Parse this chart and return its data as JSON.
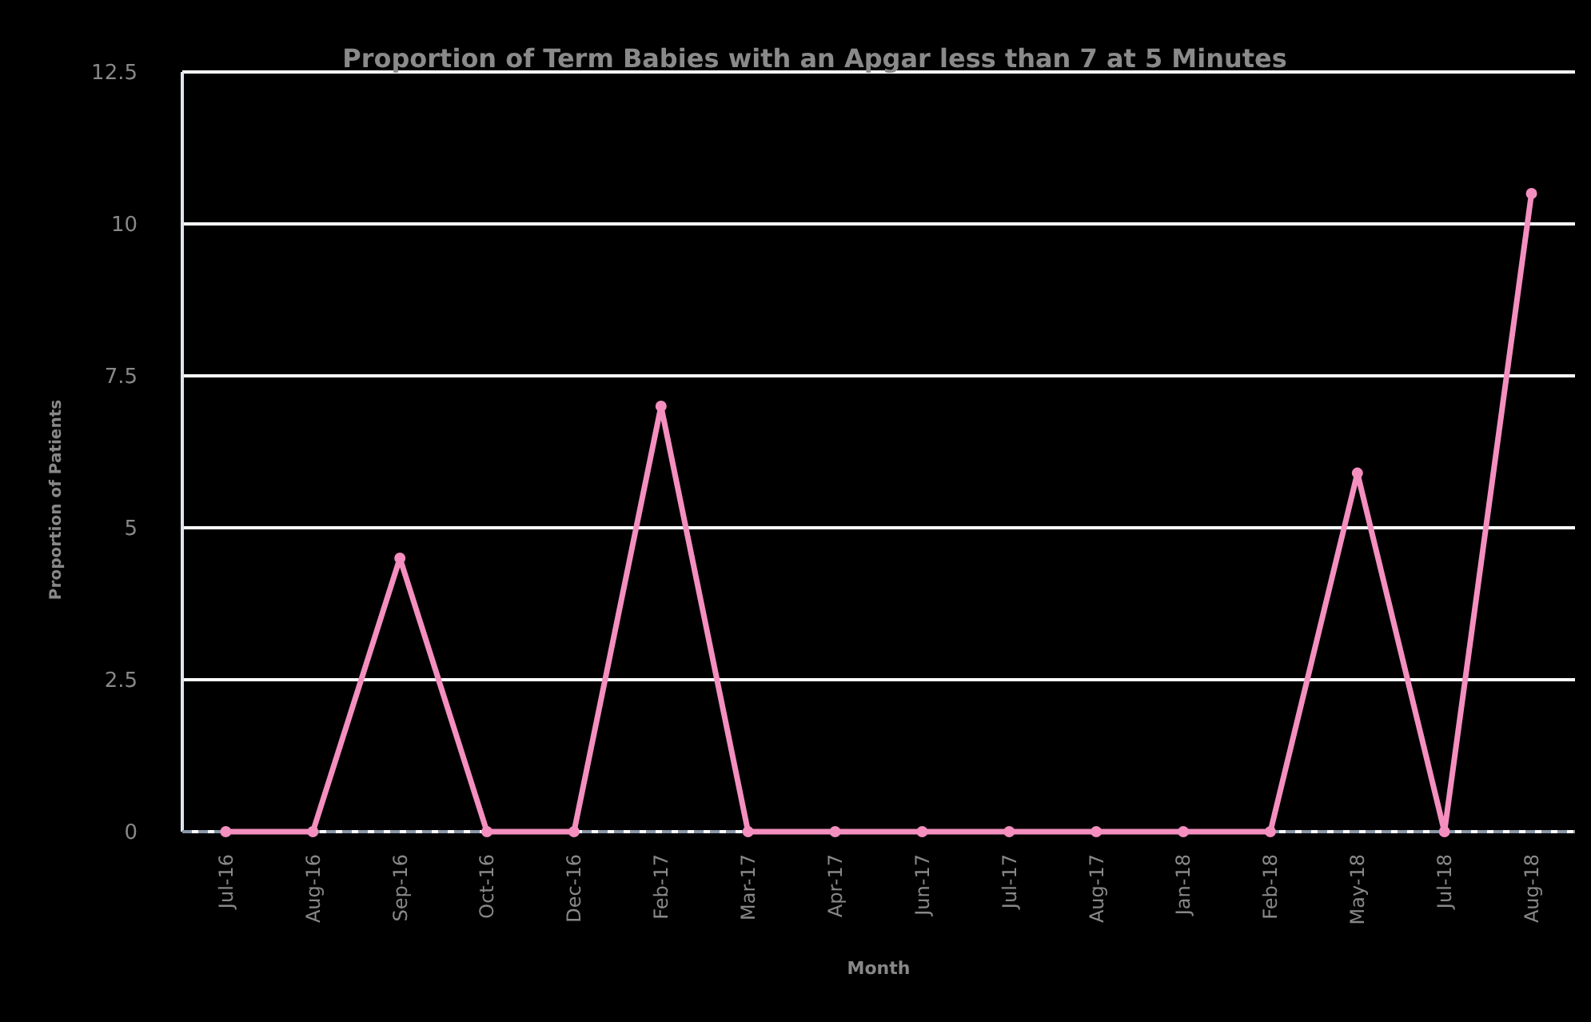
{
  "chart_data": {
    "type": "line",
    "title": "Proportion of Term Babies with an Apgar less than 7 at 5 Minutes",
    "xlabel": "Month",
    "ylabel": "Proportion of Patients",
    "categories": [
      "Jul-16",
      "Aug-16",
      "Sep-16",
      "Oct-16",
      "Dec-16",
      "Feb-17",
      "Mar-17",
      "Apr-17",
      "Jun-17",
      "Jul-17",
      "Aug-17",
      "Jan-18",
      "Feb-18",
      "May-18",
      "Jul-18",
      "Aug-18"
    ],
    "series": [
      {
        "color": "#f48fbf",
        "values": [
          0,
          0,
          4.5,
          0,
          0,
          7,
          0,
          0,
          0,
          0,
          0,
          0,
          0,
          5.9,
          0,
          10.5
        ]
      }
    ],
    "ylim": [
      0,
      12.5
    ],
    "yticks": [
      0,
      2.5,
      5,
      7.5,
      10,
      12.5
    ],
    "grid": "y",
    "marker": "circle",
    "line_style": "solid",
    "ref_lines": [
      {
        "axis": "y",
        "value": 0,
        "color": "#8a96a8",
        "line_style": "dashed"
      }
    ]
  }
}
